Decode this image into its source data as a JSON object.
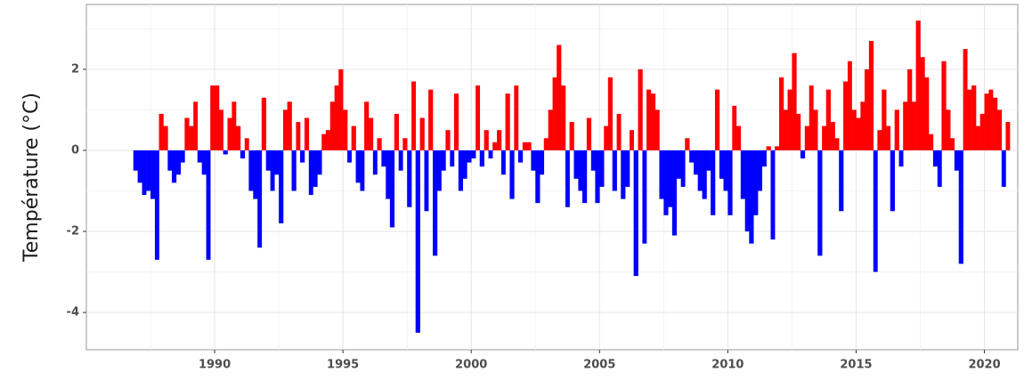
{
  "chart_data": {
    "type": "bar",
    "y_label": "Température (°C)",
    "positive_color": "#ff0000",
    "negative_color": "#0000ff",
    "grid": true,
    "xlim": [
      1985,
      2021.3
    ],
    "ylim": [
      -4.92,
      3.6
    ],
    "xticks": [
      1990,
      1995,
      2000,
      2005,
      2010,
      2015,
      2020
    ],
    "yticks": [
      -4,
      -2,
      0,
      2
    ],
    "x": [
      1986.83,
      1987,
      1987.17,
      1987.33,
      1987.5,
      1987.67,
      1987.83,
      1988,
      1988.17,
      1988.33,
      1988.5,
      1988.67,
      1988.83,
      1989,
      1989.17,
      1989.33,
      1989.5,
      1989.67,
      1989.83,
      1990,
      1990.17,
      1990.33,
      1990.5,
      1990.67,
      1990.83,
      1991,
      1991.17,
      1991.33,
      1991.5,
      1991.67,
      1991.83,
      1992,
      1992.17,
      1992.33,
      1992.5,
      1992.67,
      1992.83,
      1993,
      1993.17,
      1993.33,
      1993.5,
      1993.67,
      1993.83,
      1994,
      1994.17,
      1994.33,
      1994.5,
      1994.67,
      1994.83,
      1995,
      1995.17,
      1995.33,
      1995.5,
      1995.67,
      1995.83,
      1996,
      1996.17,
      1996.33,
      1996.5,
      1996.67,
      1996.83,
      1997,
      1997.17,
      1997.33,
      1997.5,
      1997.67,
      1997.83,
      1998,
      1998.17,
      1998.33,
      1998.5,
      1998.67,
      1998.83,
      1999,
      1999.17,
      1999.33,
      1999.5,
      1999.67,
      1999.83,
      2000,
      2000.17,
      2000.33,
      2000.5,
      2000.67,
      2000.83,
      2001,
      2001.17,
      2001.33,
      2001.5,
      2001.67,
      2001.83,
      2002,
      2002.17,
      2002.33,
      2002.5,
      2002.67,
      2002.83,
      2003,
      2003.17,
      2003.33,
      2003.5,
      2003.67,
      2003.83,
      2004,
      2004.17,
      2004.33,
      2004.5,
      2004.67,
      2004.83,
      2005,
      2005.17,
      2005.33,
      2005.5,
      2005.67,
      2005.83,
      2006,
      2006.17,
      2006.33,
      2006.5,
      2006.67,
      2006.83,
      2007,
      2007.17,
      2007.33,
      2007.5,
      2007.67,
      2007.83,
      2008,
      2008.17,
      2008.33,
      2008.5,
      2008.67,
      2008.83,
      2009,
      2009.17,
      2009.33,
      2009.5,
      2009.67,
      2009.83,
      2010,
      2010.17,
      2010.33,
      2010.5,
      2010.67,
      2010.83,
      2011,
      2011.17,
      2011.33,
      2011.5,
      2011.67,
      2011.83,
      2012,
      2012.17,
      2012.33,
      2012.5,
      2012.67,
      2012.83,
      2013,
      2013.17,
      2013.33,
      2013.5,
      2013.67,
      2013.83,
      2014,
      2014.17,
      2014.33,
      2014.5,
      2014.67,
      2014.83,
      2015,
      2015.17,
      2015.33,
      2015.5,
      2015.67,
      2015.83,
      2016,
      2016.17,
      2016.33,
      2016.5,
      2016.67,
      2016.83,
      2017,
      2017.17,
      2017.33,
      2017.5,
      2017.67,
      2017.83,
      2018,
      2018.17,
      2018.33,
      2018.5,
      2018.67,
      2018.83,
      2019,
      2019.17,
      2019.33,
      2019.5,
      2019.67,
      2019.83,
      2020,
      2020.17,
      2020.33,
      2020.5,
      2020.67,
      2020.83
    ],
    "values": [
      -0.5,
      -0.8,
      -1.1,
      -1.0,
      -1.2,
      -2.7,
      0.9,
      0.6,
      -0.5,
      -0.8,
      -0.6,
      -0.3,
      0.8,
      0.6,
      1.2,
      -0.3,
      -0.6,
      -2.7,
      1.6,
      1.6,
      1.0,
      -0.1,
      0.8,
      1.2,
      0.6,
      -0.2,
      0.3,
      -1.0,
      -1.2,
      -2.4,
      1.3,
      -0.5,
      -1.0,
      -0.6,
      -1.8,
      1.0,
      1.2,
      -1.0,
      0.7,
      -0.3,
      0.8,
      -1.1,
      -0.9,
      -0.6,
      0.4,
      0.5,
      1.2,
      1.6,
      2.0,
      1.0,
      -0.3,
      0.6,
      -0.8,
      -1.0,
      1.2,
      0.8,
      -0.6,
      0.3,
      -0.4,
      -1.2,
      -1.9,
      0.9,
      -0.5,
      0.3,
      -1.4,
      1.7,
      -4.5,
      0.8,
      -1.5,
      1.5,
      -2.6,
      -1.0,
      -0.5,
      0.5,
      -0.4,
      1.4,
      -1.0,
      -0.7,
      -0.3,
      -0.2,
      1.6,
      -0.4,
      0.5,
      -0.2,
      0.2,
      0.5,
      -0.6,
      1.4,
      -1.2,
      1.6,
      -0.3,
      0.2,
      0.2,
      -0.5,
      -1.3,
      -0.6,
      0.3,
      1.0,
      1.8,
      2.6,
      1.6,
      -1.4,
      0.7,
      -0.7,
      -1.0,
      -1.3,
      0.8,
      -0.5,
      -1.3,
      -0.9,
      0.6,
      1.8,
      -1.0,
      0.9,
      -1.2,
      -0.9,
      0.5,
      -3.1,
      2.0,
      -2.3,
      1.5,
      1.4,
      1.0,
      -1.2,
      -1.6,
      -1.4,
      -2.1,
      -0.7,
      -0.9,
      0.3,
      -0.3,
      -0.6,
      -1.0,
      -1.2,
      -0.5,
      -1.6,
      1.5,
      -0.7,
      -1.0,
      -1.6,
      1.1,
      0.6,
      -1.2,
      -2.0,
      -2.3,
      -1.6,
      -1.0,
      -0.4,
      0.1,
      -2.2,
      0.1,
      1.8,
      1.0,
      1.5,
      2.4,
      0.9,
      -0.2,
      0.6,
      1.6,
      1.0,
      -2.6,
      0.6,
      1.5,
      0.7,
      0.3,
      -1.5,
      1.7,
      2.2,
      1.0,
      0.8,
      1.2,
      2.0,
      2.7,
      -3.0,
      0.5,
      1.5,
      0.6,
      -1.5,
      1.0,
      -0.4,
      1.2,
      2.0,
      1.2,
      3.2,
      2.3,
      1.8,
      0.4,
      -0.4,
      -0.9,
      2.2,
      1.0,
      0.3,
      -0.5,
      -2.8,
      2.5,
      1.5,
      1.6,
      0.6,
      0.9,
      1.4,
      1.5,
      1.3,
      1.0,
      -0.9,
      0.7
    ]
  }
}
